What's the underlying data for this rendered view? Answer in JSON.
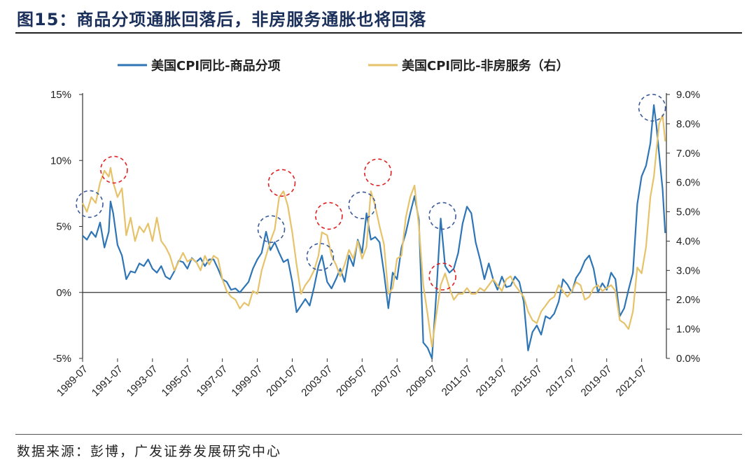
{
  "title": "图15：商品分项通胀回落后，非房服务通胀也将回落",
  "source": "数据来源：彭博，广发证券发展研究中心",
  "chart_data": {
    "type": "line",
    "title": "",
    "x_labels": [
      "1989-07",
      "1991-07",
      "1993-07",
      "1995-07",
      "1997-07",
      "1999-07",
      "2001-07",
      "2003-07",
      "2005-07",
      "2007-07",
      "2009-07",
      "2011-07",
      "2013-07",
      "2015-07",
      "2017-07",
      "2019-07",
      "2021-07"
    ],
    "x_range": [
      "1989-07",
      "2022-06"
    ],
    "y_left": {
      "ticks": [
        "15%",
        "10%",
        "5%",
        "0%",
        "-5%"
      ],
      "range": [
        -5,
        15
      ],
      "unit": "%"
    },
    "y_right": {
      "ticks": [
        "9.0%",
        "8.0%",
        "7.0%",
        "6.0%",
        "5.0%",
        "4.0%",
        "3.0%",
        "2.0%",
        "1.0%",
        "0.0%"
      ],
      "range": [
        0,
        9
      ],
      "unit": "%"
    },
    "colors": {
      "goods": "#2e75b6",
      "services": "#e6c36a",
      "blue_circle": "#3a5a9a",
      "red_circle": "#e02020"
    },
    "series": [
      {
        "name": "美国CPI同比-商品分项",
        "axis": "left",
        "points": [
          [
            1989.5,
            4.3
          ],
          [
            1989.75,
            4.0
          ],
          [
            1990.0,
            4.6
          ],
          [
            1990.25,
            4.2
          ],
          [
            1990.5,
            5.3
          ],
          [
            1990.75,
            3.4
          ],
          [
            1991.0,
            4.6
          ],
          [
            1991.1,
            6.9
          ],
          [
            1991.25,
            6.0
          ],
          [
            1991.5,
            3.6
          ],
          [
            1991.75,
            2.8
          ],
          [
            1992.0,
            1.0
          ],
          [
            1992.25,
            1.6
          ],
          [
            1992.5,
            1.5
          ],
          [
            1992.75,
            2.2
          ],
          [
            1993.0,
            2.0
          ],
          [
            1993.25,
            2.5
          ],
          [
            1993.5,
            1.8
          ],
          [
            1993.75,
            1.5
          ],
          [
            1994.0,
            2.0
          ],
          [
            1994.25,
            1.2
          ],
          [
            1994.5,
            1.0
          ],
          [
            1994.75,
            1.6
          ],
          [
            1995.0,
            2.4
          ],
          [
            1995.25,
            2.3
          ],
          [
            1995.5,
            1.8
          ],
          [
            1995.75,
            2.6
          ],
          [
            1996.0,
            2.3
          ],
          [
            1996.25,
            2.6
          ],
          [
            1996.5,
            2.0
          ],
          [
            1996.75,
            2.5
          ],
          [
            1997.0,
            2.5
          ],
          [
            1997.25,
            1.8
          ],
          [
            1997.5,
            1.0
          ],
          [
            1997.75,
            0.8
          ],
          [
            1998.0,
            0.2
          ],
          [
            1998.25,
            0.3
          ],
          [
            1998.5,
            0.0
          ],
          [
            1998.75,
            0.4
          ],
          [
            1999.0,
            0.8
          ],
          [
            1999.25,
            1.8
          ],
          [
            1999.5,
            2.5
          ],
          [
            1999.75,
            3.0
          ],
          [
            2000.0,
            4.6
          ],
          [
            2000.25,
            3.2
          ],
          [
            2000.5,
            3.8
          ],
          [
            2000.75,
            3.0
          ],
          [
            2001.0,
            2.3
          ],
          [
            2001.25,
            2.5
          ],
          [
            2001.5,
            0.8
          ],
          [
            2001.75,
            -1.5
          ],
          [
            2002.0,
            -1.0
          ],
          [
            2002.25,
            -0.5
          ],
          [
            2002.5,
            -1.0
          ],
          [
            2002.75,
            0.4
          ],
          [
            2003.0,
            2.0
          ],
          [
            2003.2,
            2.8
          ],
          [
            2003.5,
            0.8
          ],
          [
            2003.75,
            0.3
          ],
          [
            2004.0,
            1.0
          ],
          [
            2004.25,
            1.8
          ],
          [
            2004.5,
            0.8
          ],
          [
            2004.75,
            2.8
          ],
          [
            2005.0,
            2.0
          ],
          [
            2005.25,
            4.0
          ],
          [
            2005.5,
            3.0
          ],
          [
            2005.75,
            6.0
          ],
          [
            2006.0,
            4.0
          ],
          [
            2006.25,
            4.2
          ],
          [
            2006.5,
            3.8
          ],
          [
            2006.75,
            1.5
          ],
          [
            2007.0,
            -1.2
          ],
          [
            2007.25,
            1.5
          ],
          [
            2007.5,
            1.0
          ],
          [
            2007.75,
            3.4
          ],
          [
            2008.0,
            4.5
          ],
          [
            2008.25,
            6.0
          ],
          [
            2008.5,
            7.3
          ],
          [
            2008.75,
            5.5
          ],
          [
            2009.0,
            -3.8
          ],
          [
            2009.25,
            -4.2
          ],
          [
            2009.5,
            -5.0
          ],
          [
            2009.75,
            0.0
          ],
          [
            2010.0,
            5.6
          ],
          [
            2010.25,
            2.0
          ],
          [
            2010.5,
            1.5
          ],
          [
            2010.75,
            1.8
          ],
          [
            2011.0,
            3.0
          ],
          [
            2011.25,
            5.2
          ],
          [
            2011.5,
            6.5
          ],
          [
            2011.75,
            6.0
          ],
          [
            2012.0,
            3.8
          ],
          [
            2012.25,
            2.5
          ],
          [
            2012.5,
            1.0
          ],
          [
            2012.75,
            2.2
          ],
          [
            2013.0,
            1.0
          ],
          [
            2013.25,
            0.2
          ],
          [
            2013.5,
            1.2
          ],
          [
            2013.75,
            0.4
          ],
          [
            2014.0,
            0.5
          ],
          [
            2014.25,
            1.2
          ],
          [
            2014.5,
            0.8
          ],
          [
            2014.75,
            -0.7
          ],
          [
            2015.0,
            -4.4
          ],
          [
            2015.25,
            -3.0
          ],
          [
            2015.5,
            -2.5
          ],
          [
            2015.75,
            -3.2
          ],
          [
            2016.0,
            -1.8
          ],
          [
            2016.25,
            -2.0
          ],
          [
            2016.5,
            -1.6
          ],
          [
            2016.75,
            -0.7
          ],
          [
            2017.0,
            1.0
          ],
          [
            2017.25,
            0.6
          ],
          [
            2017.5,
            0.0
          ],
          [
            2017.75,
            1.1
          ],
          [
            2018.0,
            1.6
          ],
          [
            2018.25,
            2.4
          ],
          [
            2018.5,
            2.8
          ],
          [
            2018.75,
            1.8
          ],
          [
            2019.0,
            0.0
          ],
          [
            2019.25,
            0.7
          ],
          [
            2019.5,
            0.2
          ],
          [
            2019.75,
            1.5
          ],
          [
            2020.0,
            1.0
          ],
          [
            2020.25,
            -1.8
          ],
          [
            2020.5,
            -1.2
          ],
          [
            2020.75,
            0.2
          ],
          [
            2021.0,
            1.5
          ],
          [
            2021.25,
            6.7
          ],
          [
            2021.5,
            8.8
          ],
          [
            2021.75,
            9.6
          ],
          [
            2022.0,
            11.3
          ],
          [
            2022.2,
            14.2
          ],
          [
            2022.35,
            12.6
          ],
          [
            2022.5,
            10.5
          ],
          [
            2022.7,
            7.8
          ],
          [
            2022.85,
            4.5
          ]
        ]
      },
      {
        "name": "美国CPI同比-非房服务（右）",
        "axis": "right",
        "points": [
          [
            1989.5,
            5.3
          ],
          [
            1989.75,
            5.0
          ],
          [
            1990.0,
            5.5
          ],
          [
            1990.25,
            5.3
          ],
          [
            1990.5,
            6.0
          ],
          [
            1990.75,
            6.4
          ],
          [
            1991.0,
            6.2
          ],
          [
            1991.1,
            6.5
          ],
          [
            1991.25,
            6.0
          ],
          [
            1991.5,
            5.5
          ],
          [
            1991.75,
            5.8
          ],
          [
            1992.0,
            4.2
          ],
          [
            1992.25,
            4.8
          ],
          [
            1992.5,
            4.0
          ],
          [
            1992.75,
            4.5
          ],
          [
            1993.0,
            4.3
          ],
          [
            1993.25,
            4.6
          ],
          [
            1993.5,
            4.0
          ],
          [
            1993.75,
            4.8
          ],
          [
            1994.0,
            4.0
          ],
          [
            1994.25,
            3.8
          ],
          [
            1994.5,
            3.5
          ],
          [
            1994.75,
            3.0
          ],
          [
            1995.0,
            3.3
          ],
          [
            1995.25,
            3.6
          ],
          [
            1995.5,
            3.3
          ],
          [
            1995.75,
            3.4
          ],
          [
            1996.0,
            3.3
          ],
          [
            1996.25,
            3.0
          ],
          [
            1996.5,
            3.5
          ],
          [
            1996.75,
            3.2
          ],
          [
            1997.0,
            3.5
          ],
          [
            1997.25,
            3.4
          ],
          [
            1997.5,
            2.7
          ],
          [
            1997.75,
            2.3
          ],
          [
            1998.0,
            2.1
          ],
          [
            1998.25,
            2.0
          ],
          [
            1998.5,
            1.7
          ],
          [
            1998.75,
            1.9
          ],
          [
            1999.0,
            1.8
          ],
          [
            1999.25,
            2.3
          ],
          [
            1999.5,
            2.2
          ],
          [
            1999.75,
            3.0
          ],
          [
            2000.0,
            3.5
          ],
          [
            2000.25,
            4.0
          ],
          [
            2000.5,
            4.4
          ],
          [
            2000.75,
            5.5
          ],
          [
            2001.0,
            5.7
          ],
          [
            2001.25,
            5.2
          ],
          [
            2001.5,
            4.3
          ],
          [
            2001.75,
            3.2
          ],
          [
            2002.0,
            2.2
          ],
          [
            2002.25,
            2.5
          ],
          [
            2002.5,
            2.7
          ],
          [
            2002.75,
            3.0
          ],
          [
            2003.0,
            3.5
          ],
          [
            2003.2,
            4.3
          ],
          [
            2003.5,
            4.2
          ],
          [
            2003.75,
            3.5
          ],
          [
            2004.0,
            3.2
          ],
          [
            2004.25,
            2.8
          ],
          [
            2004.5,
            3.2
          ],
          [
            2004.75,
            3.7
          ],
          [
            2005.0,
            3.4
          ],
          [
            2005.25,
            4.0
          ],
          [
            2005.5,
            3.4
          ],
          [
            2005.75,
            3.8
          ],
          [
            2006.0,
            5.7
          ],
          [
            2006.25,
            5.2
          ],
          [
            2006.5,
            4.5
          ],
          [
            2006.75,
            3.9
          ],
          [
            2007.0,
            2.2
          ],
          [
            2007.25,
            2.4
          ],
          [
            2007.5,
            3.4
          ],
          [
            2007.75,
            3.5
          ],
          [
            2008.0,
            4.8
          ],
          [
            2008.25,
            5.5
          ],
          [
            2008.5,
            5.9
          ],
          [
            2008.75,
            4.5
          ],
          [
            2009.0,
            2.5
          ],
          [
            2009.25,
            1.5
          ],
          [
            2009.5,
            0.4
          ],
          [
            2009.75,
            1.5
          ],
          [
            2010.0,
            2.5
          ],
          [
            2010.25,
            2.9
          ],
          [
            2010.5,
            2.4
          ],
          [
            2010.75,
            2.0
          ],
          [
            2011.0,
            2.2
          ],
          [
            2011.25,
            2.2
          ],
          [
            2011.5,
            2.4
          ],
          [
            2011.75,
            2.2
          ],
          [
            2012.0,
            2.2
          ],
          [
            2012.25,
            2.4
          ],
          [
            2012.5,
            2.3
          ],
          [
            2012.75,
            2.5
          ],
          [
            2013.0,
            2.7
          ],
          [
            2013.25,
            2.5
          ],
          [
            2013.5,
            2.3
          ],
          [
            2013.75,
            2.7
          ],
          [
            2014.0,
            2.8
          ],
          [
            2014.25,
            2.5
          ],
          [
            2014.5,
            2.3
          ],
          [
            2014.75,
            2.1
          ],
          [
            2015.0,
            1.6
          ],
          [
            2015.25,
            1.3
          ],
          [
            2015.5,
            1.2
          ],
          [
            2015.75,
            1.6
          ],
          [
            2016.0,
            1.8
          ],
          [
            2016.25,
            2.0
          ],
          [
            2016.5,
            2.1
          ],
          [
            2016.75,
            2.5
          ],
          [
            2017.0,
            2.3
          ],
          [
            2017.25,
            2.1
          ],
          [
            2017.5,
            2.3
          ],
          [
            2017.75,
            2.6
          ],
          [
            2018.0,
            2.5
          ],
          [
            2018.25,
            2.0
          ],
          [
            2018.5,
            2.1
          ],
          [
            2018.75,
            2.4
          ],
          [
            2019.0,
            2.5
          ],
          [
            2019.25,
            2.3
          ],
          [
            2019.5,
            2.4
          ],
          [
            2019.75,
            2.5
          ],
          [
            2020.0,
            2.3
          ],
          [
            2020.25,
            1.3
          ],
          [
            2020.5,
            1.2
          ],
          [
            2020.75,
            1.0
          ],
          [
            2021.0,
            1.6
          ],
          [
            2021.25,
            3.1
          ],
          [
            2021.5,
            2.9
          ],
          [
            2021.75,
            3.8
          ],
          [
            2022.0,
            5.5
          ],
          [
            2022.2,
            6.2
          ],
          [
            2022.35,
            7.1
          ],
          [
            2022.5,
            8.0
          ],
          [
            2022.7,
            8.3
          ],
          [
            2022.85,
            7.4
          ]
        ]
      }
    ],
    "circles": [
      {
        "color": "blue",
        "x": 1989.9,
        "y_left": 6.7
      },
      {
        "color": "red",
        "x": 1991.3,
        "y_left": 9.3
      },
      {
        "color": "blue",
        "x": 2000.3,
        "y_left": 4.8
      },
      {
        "color": "red",
        "x": 2000.9,
        "y_left": 8.3
      },
      {
        "color": "blue",
        "x": 2003.1,
        "y_left": 2.7
      },
      {
        "color": "red",
        "x": 2003.6,
        "y_left": 5.8
      },
      {
        "color": "blue",
        "x": 2005.5,
        "y_left": 6.6
      },
      {
        "color": "red",
        "x": 2006.4,
        "y_left": 9.1
      },
      {
        "color": "blue",
        "x": 2010.1,
        "y_left": 5.8
      },
      {
        "color": "red",
        "x": 2010.1,
        "y_left": 1.2
      },
      {
        "color": "blue",
        "x": 2022.1,
        "y_left": 14.0
      }
    ]
  }
}
